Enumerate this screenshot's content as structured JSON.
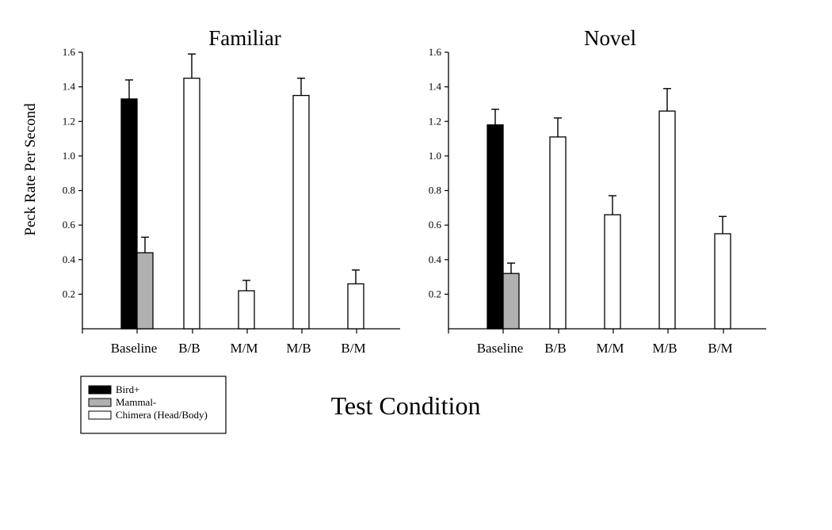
{
  "chart_data": [
    {
      "type": "bar",
      "title": "Familiar",
      "xlabel": "Test Condition",
      "ylabel": "Peck Rate Per Second",
      "ylim": [
        0,
        1.6
      ],
      "yticks": [
        "0.2",
        "0.4",
        "0.6",
        "0.8",
        "1.0",
        "1.2",
        "1.4",
        "1.6"
      ],
      "categories": [
        "Baseline",
        "B/B",
        "M/M",
        "M/B",
        "B/M"
      ],
      "grid": false,
      "series": [
        {
          "name": "Bird+",
          "color": "#000000",
          "values": [
            1.33,
            null,
            null,
            null,
            null
          ],
          "errors": [
            0.11,
            null,
            null,
            null,
            null
          ]
        },
        {
          "name": "Mammal-",
          "color": "#b0b0b0",
          "values": [
            0.44,
            null,
            null,
            null,
            null
          ],
          "errors": [
            0.09,
            null,
            null,
            null,
            null
          ]
        },
        {
          "name": "Chimera (Head/Body)",
          "color": "#ffffff",
          "values": [
            null,
            1.45,
            0.22,
            1.35,
            0.26
          ],
          "errors": [
            null,
            0.14,
            0.06,
            0.1,
            0.08
          ]
        }
      ]
    },
    {
      "type": "bar",
      "title": "Novel",
      "xlabel": "Test Condition",
      "ylabel": "Peck Rate Per Second",
      "ylim": [
        0,
        1.6
      ],
      "yticks": [
        "0.2",
        "0.4",
        "0.6",
        "0.8",
        "1.0",
        "1.2",
        "1.4",
        "1.6"
      ],
      "categories": [
        "Baseline",
        "B/B",
        "M/M",
        "M/B",
        "B/M"
      ],
      "grid": false,
      "series": [
        {
          "name": "Bird+",
          "color": "#000000",
          "values": [
            1.18,
            null,
            null,
            null,
            null
          ],
          "errors": [
            0.09,
            null,
            null,
            null,
            null
          ]
        },
        {
          "name": "Mammal-",
          "color": "#b0b0b0",
          "values": [
            0.32,
            null,
            null,
            null,
            null
          ],
          "errors": [
            0.06,
            null,
            null,
            null,
            null
          ]
        },
        {
          "name": "Chimera (Head/Body)",
          "color": "#ffffff",
          "values": [
            null,
            1.11,
            0.66,
            1.26,
            0.55
          ],
          "errors": [
            null,
            0.11,
            0.11,
            0.13,
            0.1
          ]
        }
      ]
    }
  ],
  "figure": {
    "xlabel": "Test Condition",
    "ylabel": "Peck Rate Per Second",
    "legend": {
      "position": "bottom-left",
      "items": [
        {
          "label": "Bird+",
          "color": "#000000"
        },
        {
          "label": "Mammal-",
          "color": "#b0b0b0"
        },
        {
          "label": "Chimera (Head/Body)",
          "color": "#ffffff"
        }
      ]
    }
  }
}
